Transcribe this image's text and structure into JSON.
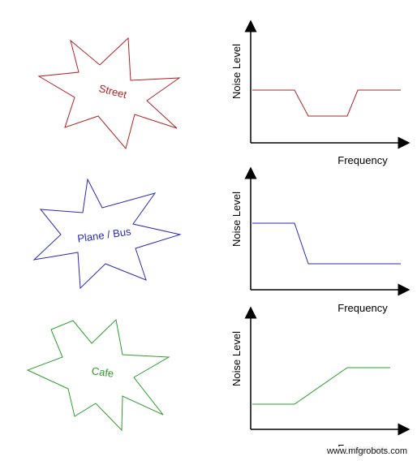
{
  "rows": [
    {
      "label": "Street",
      "color": "#b22222",
      "ylabel": "Noise Level",
      "xlabel": "Frequency",
      "profile": "dip in mid frequencies"
    },
    {
      "label": "Plane / Bus",
      "color": "#2a2ab8",
      "ylabel": "Noise Level",
      "xlabel": "Frequency",
      "profile": "high at low frequencies, then drops"
    },
    {
      "label": "Cafe",
      "color": "#2e9e2e",
      "ylabel": "Noise Level",
      "xlabel": "Frequency",
      "profile": "low at low frequencies, then rises"
    }
  ],
  "watermark": "www.mfgrobots.com"
}
